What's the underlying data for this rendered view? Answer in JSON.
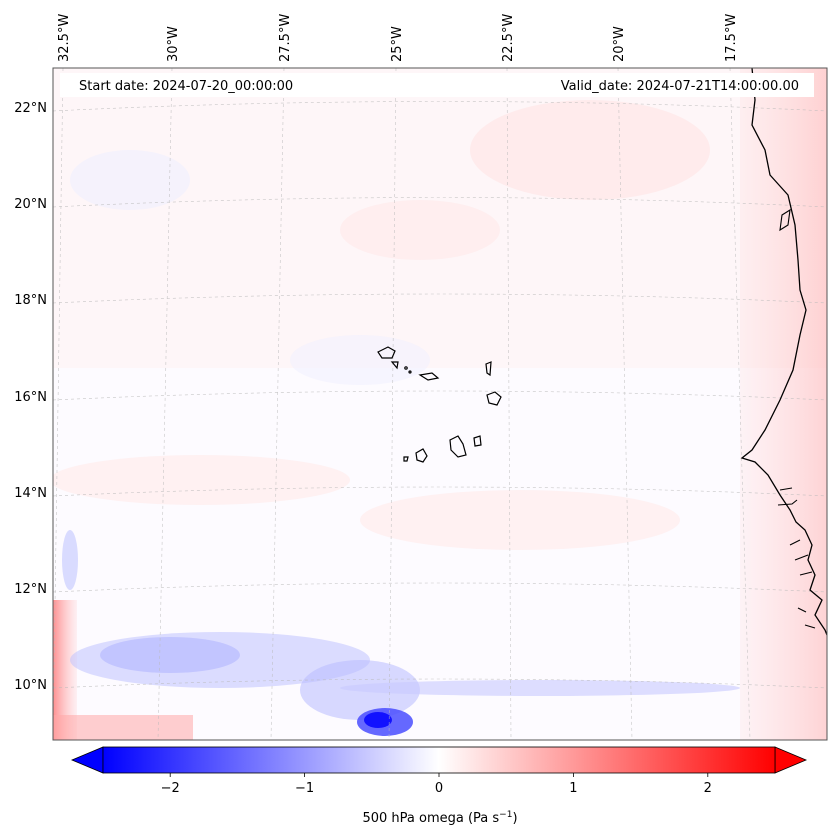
{
  "map": {
    "start_date": "Start date: 2024-07-20_00:00:00",
    "valid_date": "Valid_date: 2024-07-21T14:00:00.00",
    "lon_labels": [
      "32.5°W",
      "30°W",
      "27.5°W",
      "25°W",
      "22.5°W",
      "20°W",
      "17.5°W"
    ],
    "lat_labels": [
      "22°N",
      "20°N",
      "18°N",
      "16°N",
      "14°N",
      "12°N",
      "10°N"
    ],
    "field": "500 hPa omega",
    "units": "Pa s⁻¹"
  },
  "colorbar": {
    "label": "500 hPa omega (Pa s",
    "label_sup": "−1",
    "label_end": ")",
    "ticks": [
      "−2",
      "−1",
      "0",
      "1",
      "2"
    ],
    "tick_values": [
      -2,
      -1,
      0,
      1,
      2
    ],
    "vmin": -2.5,
    "vmax": 2.5,
    "colormap": "bwr",
    "color_low": "#0000ff",
    "color_mid": "#ffffff",
    "color_high": "#ff0000"
  }
}
